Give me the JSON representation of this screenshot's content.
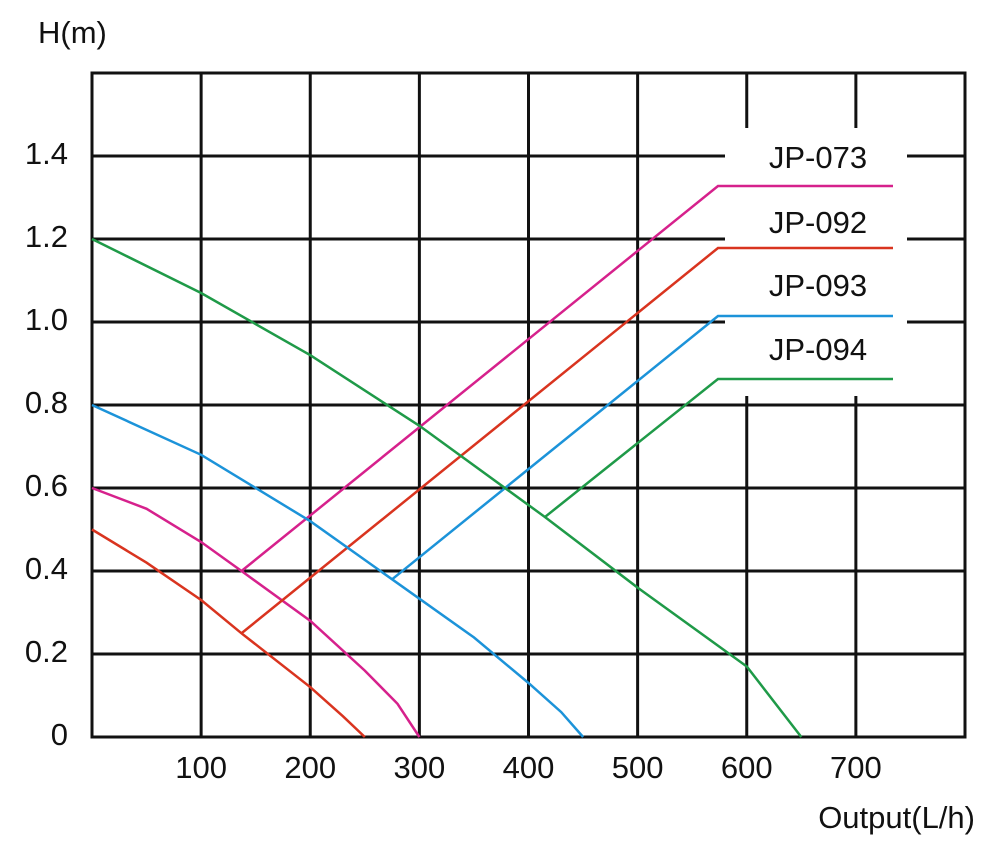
{
  "chart_data": {
    "type": "line",
    "y_label": "H(m)",
    "x_label": "Output(L/h)",
    "xlim": [
      0,
      800
    ],
    "ylim": [
      0,
      1.6
    ],
    "xticks": [
      100,
      200,
      300,
      400,
      500,
      600,
      700
    ],
    "yticks": [
      0,
      0.2,
      0.4,
      0.6,
      0.8,
      {
        "value": 1,
        "label": "1.0"
      },
      1.2,
      1.4
    ],
    "grid": true,
    "series": [
      {
        "name": "JP-073",
        "color": "#d6218c",
        "x": [
          0,
          50,
          100,
          137,
          200,
          250,
          280,
          300
        ],
        "values": [
          0.6,
          0.55,
          0.47,
          0.4,
          0.28,
          0.16,
          0.08,
          0
        ]
      },
      {
        "name": "JP-092",
        "color": "#d9341f",
        "x": [
          0,
          50,
          100,
          137,
          200,
          230,
          250
        ],
        "values": [
          0.5,
          0.42,
          0.33,
          0.25,
          0.12,
          0.05,
          0
        ]
      },
      {
        "name": "JP-093",
        "color": "#1c93d9",
        "x": [
          0,
          100,
          200,
          275,
          350,
          400,
          430,
          450
        ],
        "values": [
          0.8,
          0.68,
          0.52,
          0.38,
          0.24,
          0.13,
          0.06,
          0
        ]
      },
      {
        "name": "JP-094",
        "color": "#1f9a48",
        "x": [
          0,
          100,
          200,
          300,
          415,
          500,
          600,
          650
        ],
        "values": [
          1.2,
          1.07,
          0.92,
          0.75,
          0.53,
          0.36,
          0.17,
          0
        ]
      }
    ]
  }
}
